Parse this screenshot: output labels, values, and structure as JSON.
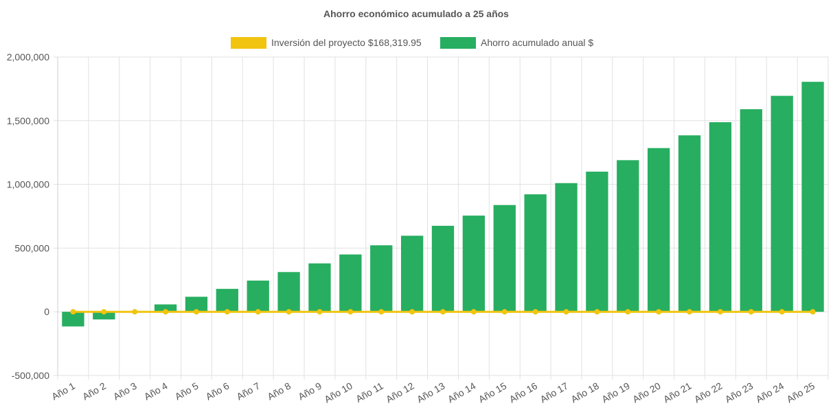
{
  "chart_data": {
    "type": "bar",
    "title": "Ahorro económico acumulado a 25 años",
    "categories": [
      "Año 1",
      "Año 2",
      "Año 3",
      "Año 4",
      "Año 5",
      "Año 6",
      "Año 7",
      "Año 8",
      "Año 9",
      "Año 10",
      "Año 11",
      "Año 12",
      "Año 13",
      "Año 14",
      "Año 15",
      "Año 16",
      "Año 17",
      "Año 18",
      "Año 19",
      "Año 20",
      "Año 21",
      "Año 22",
      "Año 23",
      "Año 24",
      "Año 25"
    ],
    "series": [
      {
        "name": "Inversión del proyecto $168,319.95",
        "type": "line",
        "color": "#f1c40f",
        "values": [
          0,
          0,
          0,
          0,
          0,
          0,
          0,
          0,
          0,
          0,
          0,
          0,
          0,
          0,
          0,
          0,
          0,
          0,
          0,
          0,
          0,
          0,
          0,
          0,
          0
        ]
      },
      {
        "name": "Ahorro acumulado anual $",
        "type": "bar",
        "color": "#27ae60",
        "values": [
          -115000,
          -60000,
          0,
          58000,
          118000,
          180000,
          245000,
          312000,
          380000,
          450000,
          522000,
          597000,
          675000,
          755000,
          838000,
          922000,
          1010000,
          1100000,
          1190000,
          1285000,
          1385000,
          1488000,
          1590000,
          1695000,
          1805000
        ]
      }
    ],
    "ylim": [
      -500000,
      2000000
    ],
    "yticks": [
      "2,000,000",
      "1,500,000",
      "1,000,000",
      "500,000",
      "0",
      "-500,000"
    ],
    "ytick_values": [
      2000000,
      1500000,
      1000000,
      500000,
      0,
      -500000
    ],
    "grid": true,
    "legend_position": "top"
  }
}
